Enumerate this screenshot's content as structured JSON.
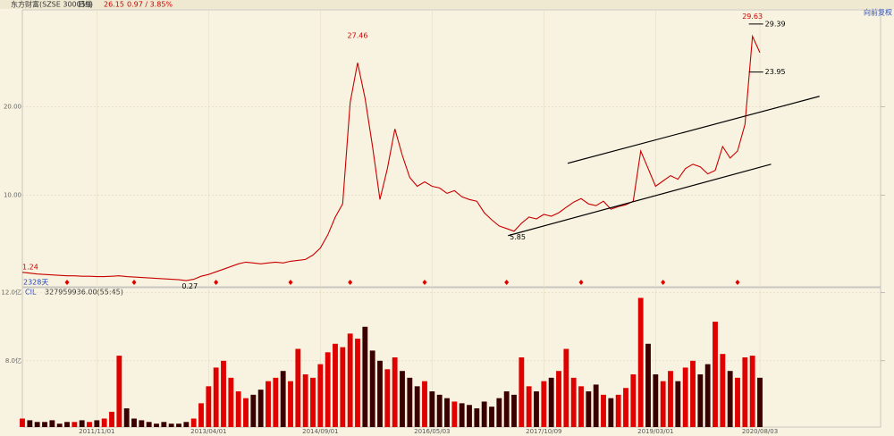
{
  "header": {
    "name": "东方财富(SZSE 300059)",
    "period": "日线",
    "price": "26.15",
    "change": "0.97 / 3.85%",
    "adjust": "向前复权",
    "days": "2328天",
    "volume_name": "CIL",
    "volume_info": "327959936.00(55:45)"
  },
  "chart_data": [
    {
      "type": "line",
      "color": "#c80000",
      "values": [
        1.24,
        1.15,
        1.05,
        1.0,
        0.95,
        0.9,
        0.85,
        0.85,
        0.8,
        0.8,
        0.75,
        0.75,
        0.8,
        0.85,
        0.75,
        0.7,
        0.65,
        0.6,
        0.55,
        0.5,
        0.45,
        0.4,
        0.3,
        0.45,
        0.8,
        1.0,
        1.3,
        1.6,
        1.9,
        2.2,
        2.4,
        2.3,
        2.2,
        2.3,
        2.4,
        2.3,
        2.5,
        2.6,
        2.7,
        3.2,
        4.0,
        5.5,
        7.5,
        9.0,
        20.5,
        25.0,
        21.0,
        15.5,
        9.5,
        13.0,
        17.5,
        14.5,
        12.0,
        11.0,
        11.5,
        11.0,
        10.8,
        10.2,
        10.5,
        9.8,
        9.5,
        9.3,
        8.0,
        7.2,
        6.5,
        6.2,
        5.9,
        6.8,
        7.5,
        7.3,
        7.8,
        7.6,
        8.0,
        8.6,
        9.2,
        9.6,
        9.0,
        8.8,
        9.3,
        8.4,
        8.7,
        8.9,
        9.3,
        15.0,
        13.0,
        11.0,
        11.6,
        12.2,
        11.8,
        13.0,
        13.5,
        13.2,
        12.4,
        12.8,
        15.5,
        14.2,
        15.0,
        18.0,
        28.0,
        26.15
      ],
      "ylim": [
        -0.4,
        31.0
      ],
      "yticks": [
        {
          "value": 10,
          "label": "10.00"
        },
        {
          "value": 20,
          "label": "20.00"
        }
      ],
      "grid": true,
      "annotations": [
        {
          "x": 45,
          "value": 27.46,
          "position": "above",
          "color": "#d00000"
        },
        {
          "x": 0,
          "value": 1.24,
          "position": "above",
          "color": "#d00000"
        },
        {
          "x": 22,
          "value": 0.27,
          "position": "below",
          "color": "#000000"
        },
        {
          "x": 66,
          "value": 5.85,
          "position": "below",
          "color": "#000000"
        },
        {
          "x": 98,
          "value": 29.63,
          "position": "above",
          "color": "#d00000"
        },
        {
          "x": 98,
          "value": 29.39,
          "position": "right",
          "color": "#000000"
        },
        {
          "x": 98,
          "value": 23.95,
          "position": "right",
          "color": "#000000"
        }
      ],
      "trendlines": [
        {
          "x": [
            73.2,
            107
          ],
          "values": [
            13.6,
            21.2
          ]
        },
        {
          "x": [
            65.2,
            100.5
          ],
          "values": [
            5.4,
            13.5
          ]
        }
      ],
      "event_markers": [
        6,
        15,
        26,
        36,
        44,
        54,
        65,
        75,
        86,
        96
      ]
    },
    {
      "type": "bar",
      "up_color": "#e00000",
      "down_color": "#3a0000",
      "categories": [
        null,
        null,
        null,
        null,
        null,
        null,
        null,
        null,
        null,
        null,
        "2011/11/01",
        null,
        null,
        null,
        null,
        null,
        null,
        null,
        null,
        null,
        null,
        null,
        null,
        null,
        null,
        "2013/04/01",
        null,
        null,
        null,
        null,
        null,
        null,
        null,
        null,
        null,
        null,
        null,
        null,
        null,
        null,
        "2014/09/01",
        null,
        null,
        null,
        null,
        null,
        null,
        null,
        null,
        null,
        null,
        null,
        null,
        null,
        null,
        "2016/05/03",
        null,
        null,
        null,
        null,
        null,
        null,
        null,
        null,
        null,
        null,
        null,
        null,
        null,
        null,
        "2017/10/09",
        null,
        null,
        null,
        null,
        null,
        null,
        null,
        null,
        null,
        null,
        null,
        null,
        null,
        null,
        "2019/03/01",
        null,
        null,
        null,
        null,
        null,
        null,
        null,
        null,
        null,
        null,
        null,
        null,
        null,
        "2020/08/03"
      ],
      "values": [
        4.6,
        4.5,
        4.4,
        4.4,
        4.5,
        4.3,
        4.4,
        4.4,
        4.5,
        4.4,
        4.5,
        4.6,
        5.0,
        8.3,
        5.2,
        4.6,
        4.5,
        4.4,
        4.3,
        4.4,
        4.3,
        4.3,
        4.4,
        4.6,
        5.5,
        6.5,
        7.6,
        8.0,
        7.0,
        6.2,
        5.8,
        6.0,
        6.3,
        6.8,
        7.0,
        7.4,
        6.8,
        8.7,
        7.2,
        7.0,
        7.8,
        8.5,
        9.0,
        8.8,
        9.6,
        9.3,
        10.0,
        8.6,
        8.0,
        7.5,
        8.2,
        7.4,
        7.0,
        6.5,
        6.8,
        6.2,
        6.0,
        5.8,
        5.6,
        5.5,
        5.4,
        5.2,
        5.6,
        5.3,
        5.8,
        6.2,
        6.0,
        8.2,
        6.5,
        6.2,
        6.8,
        7.0,
        7.4,
        8.7,
        7.0,
        6.5,
        6.2,
        6.6,
        6.0,
        5.8,
        6.0,
        6.4,
        7.2,
        11.7,
        9.0,
        7.2,
        6.8,
        7.4,
        6.8,
        7.6,
        8.0,
        7.2,
        7.8,
        10.3,
        8.4,
        7.4,
        7.0,
        8.2,
        8.3,
        7.0
      ],
      "ylim": [
        4.1,
        12.3
      ],
      "yticks": [
        {
          "value": 12,
          "label": "12.0亿"
        },
        {
          "value": 8,
          "label": "8.0亿"
        }
      ],
      "grid": true
    }
  ]
}
